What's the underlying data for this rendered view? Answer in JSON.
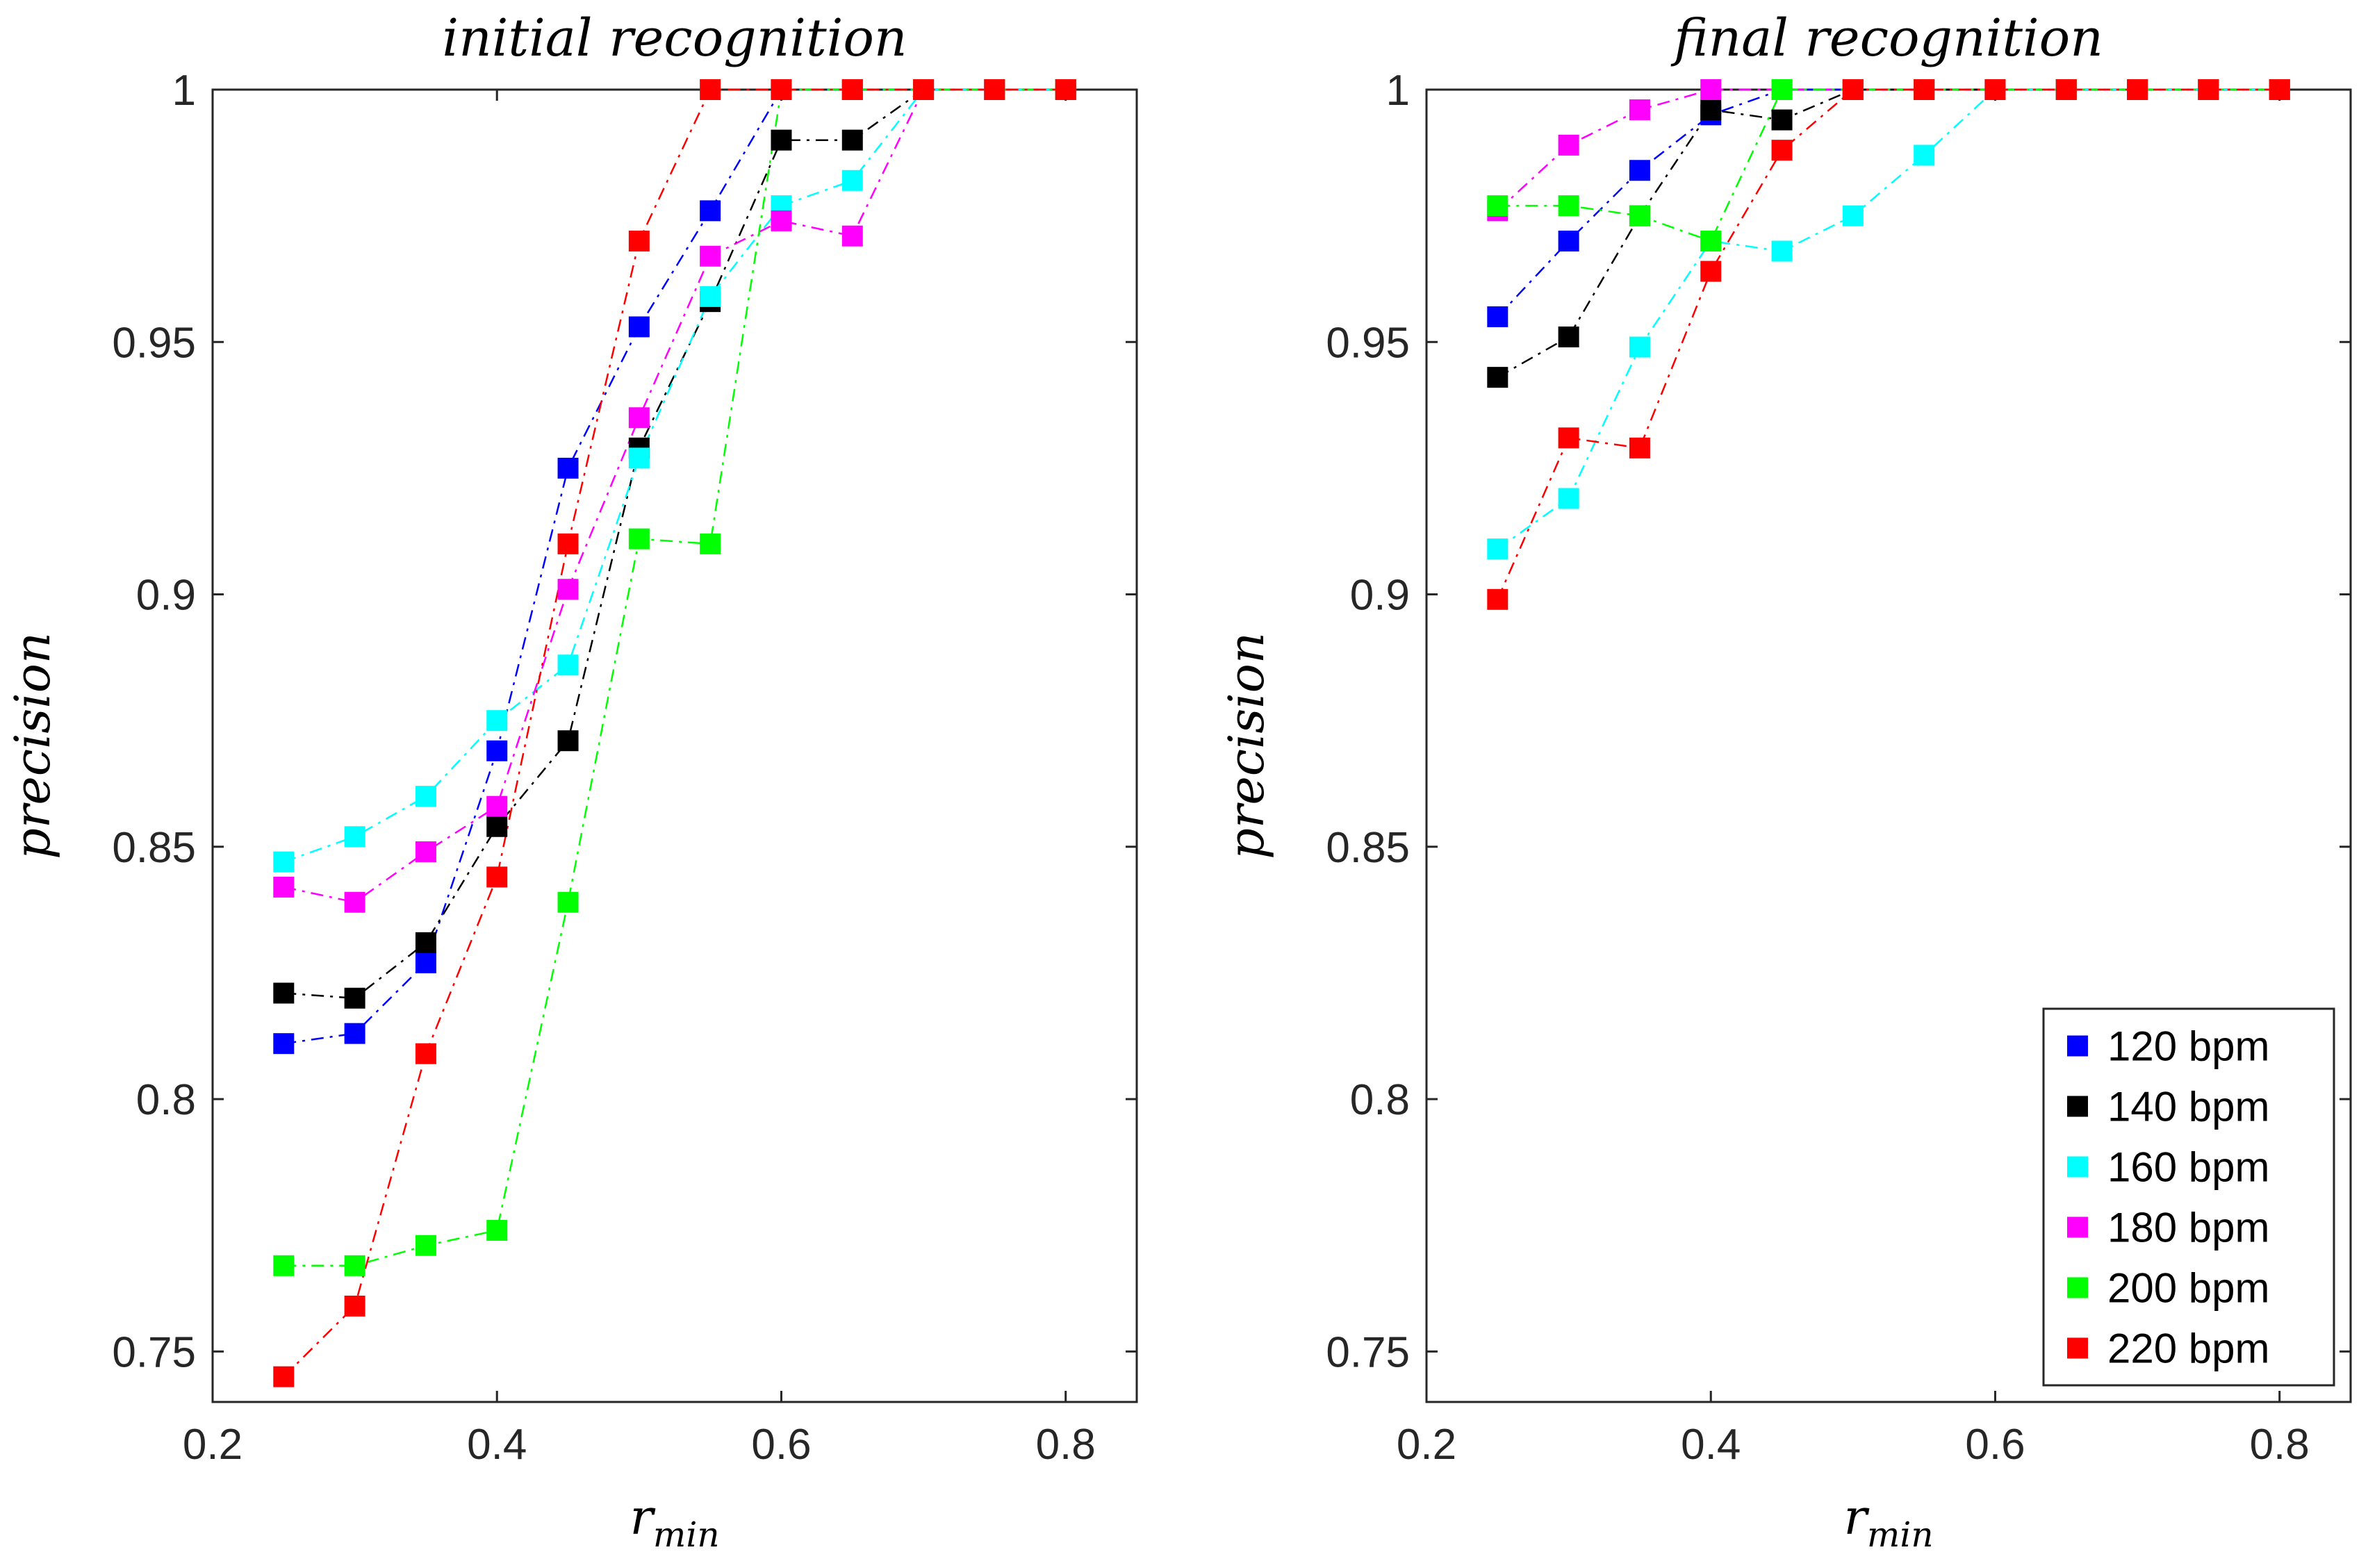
{
  "chart_data": [
    {
      "type": "line",
      "title": "initial recognition",
      "xlabel": "r",
      "xlabel_sub": "min",
      "ylabel": "precision",
      "xlim": [
        0.2,
        0.85
      ],
      "ylim": [
        0.74,
        1.0
      ],
      "xticks": [
        0.2,
        0.4,
        0.6,
        0.8
      ],
      "yticks": [
        0.75,
        0.8,
        0.85,
        0.9,
        0.95,
        1
      ],
      "xtick_labels": [
        "0.2",
        "0.4",
        "0.6",
        "0.8"
      ],
      "ytick_labels": [
        "0.75",
        "0.8",
        "0.85",
        "0.9",
        "0.95",
        "1"
      ],
      "x": [
        0.25,
        0.3,
        0.35,
        0.4,
        0.45,
        0.5,
        0.55,
        0.6,
        0.65,
        0.7,
        0.75,
        0.8
      ],
      "series": [
        {
          "name": "120 bpm",
          "color": "#0000ff",
          "values": [
            0.811,
            0.813,
            0.827,
            0.869,
            0.925,
            0.953,
            0.976,
            1.0,
            1.0,
            1.0,
            1.0,
            1.0
          ]
        },
        {
          "name": "140 bpm",
          "color": "#000000",
          "values": [
            0.821,
            0.82,
            0.831,
            0.854,
            0.871,
            0.929,
            0.958,
            0.99,
            0.99,
            1.0,
            1.0,
            1.0
          ]
        },
        {
          "name": "160 bpm",
          "color": "#00ffff",
          "values": [
            0.847,
            0.852,
            0.86,
            0.875,
            0.886,
            0.927,
            0.959,
            0.977,
            0.982,
            1.0,
            1.0,
            1.0
          ]
        },
        {
          "name": "180 bpm",
          "color": "#ff00ff",
          "values": [
            0.842,
            0.839,
            0.849,
            0.858,
            0.901,
            0.935,
            0.967,
            0.974,
            0.971,
            1.0,
            1.0,
            1.0
          ]
        },
        {
          "name": "200 bpm",
          "color": "#00ff00",
          "values": [
            0.767,
            0.767,
            0.771,
            0.774,
            0.839,
            0.911,
            0.91,
            1.0,
            1.0,
            1.0,
            1.0,
            1.0
          ]
        },
        {
          "name": "220 bpm",
          "color": "#ff0000",
          "values": [
            0.745,
            0.759,
            0.809,
            0.844,
            0.91,
            0.97,
            1.0,
            1.0,
            1.0,
            1.0,
            1.0,
            1.0
          ]
        }
      ]
    },
    {
      "type": "line",
      "title": "final recognition",
      "xlabel": "r",
      "xlabel_sub": "min",
      "ylabel": "precision",
      "xlim": [
        0.2,
        0.85
      ],
      "ylim": [
        0.74,
        1.0
      ],
      "xticks": [
        0.2,
        0.4,
        0.6,
        0.8
      ],
      "yticks": [
        0.75,
        0.8,
        0.85,
        0.9,
        0.95,
        1
      ],
      "xtick_labels": [
        "0.2",
        "0.4",
        "0.6",
        "0.8"
      ],
      "ytick_labels": [
        "0.75",
        "0.8",
        "0.85",
        "0.9",
        "0.95",
        "1"
      ],
      "x": [
        0.25,
        0.3,
        0.35,
        0.4,
        0.45,
        0.5,
        0.55,
        0.6,
        0.65,
        0.7,
        0.75,
        0.8
      ],
      "legend_position": "bottom-right",
      "series": [
        {
          "name": "120 bpm",
          "color": "#0000ff",
          "values": [
            0.955,
            0.97,
            0.984,
            0.995,
            1.0,
            1.0,
            1.0,
            1.0,
            1.0,
            1.0,
            1.0,
            1.0
          ]
        },
        {
          "name": "140 bpm",
          "color": "#000000",
          "values": [
            0.943,
            0.951,
            0.975,
            0.996,
            0.994,
            1.0,
            1.0,
            1.0,
            1.0,
            1.0,
            1.0,
            1.0
          ]
        },
        {
          "name": "160 bpm",
          "color": "#00ffff",
          "values": [
            0.909,
            0.919,
            0.949,
            0.97,
            0.968,
            0.975,
            0.987,
            1.0,
            1.0,
            1.0,
            1.0,
            1.0
          ]
        },
        {
          "name": "180 bpm",
          "color": "#ff00ff",
          "values": [
            0.976,
            0.989,
            0.996,
            1.0,
            1.0,
            1.0,
            1.0,
            1.0,
            1.0,
            1.0,
            1.0,
            1.0
          ]
        },
        {
          "name": "200 bpm",
          "color": "#00ff00",
          "values": [
            0.977,
            0.977,
            0.975,
            0.97,
            1.0,
            1.0,
            1.0,
            1.0,
            1.0,
            1.0,
            1.0,
            1.0
          ]
        },
        {
          "name": "220 bpm",
          "color": "#ff0000",
          "values": [
            0.899,
            0.931,
            0.929,
            0.964,
            0.988,
            1.0,
            1.0,
            1.0,
            1.0,
            1.0,
            1.0,
            1.0
          ]
        }
      ]
    }
  ]
}
